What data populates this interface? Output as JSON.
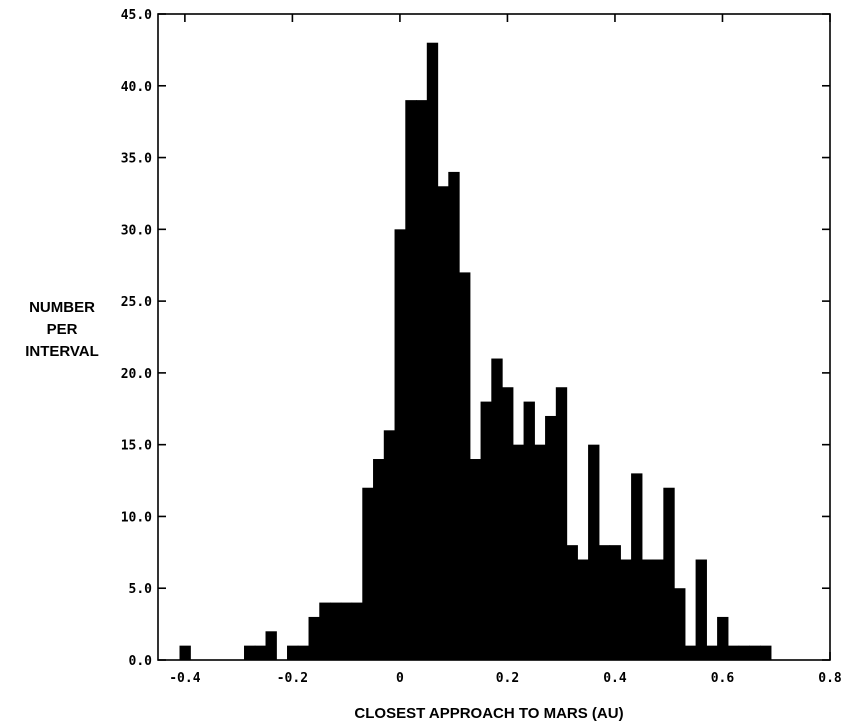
{
  "chart_data": {
    "type": "bar",
    "xlabel": "CLOSEST APPROACH TO MARS (AU)",
    "ylabel_lines": [
      "NUMBER",
      "PER",
      "INTERVAL"
    ],
    "xlim": [
      -0.45,
      0.8
    ],
    "ylim": [
      0,
      45
    ],
    "bin_width": 0.02,
    "xticks": [
      {
        "value": -0.4,
        "label": "-0.4"
      },
      {
        "value": -0.2,
        "label": "-0.2"
      },
      {
        "value": 0.0,
        "label": "0"
      },
      {
        "value": 0.2,
        "label": "0.2"
      },
      {
        "value": 0.4,
        "label": "0.4"
      },
      {
        "value": 0.6,
        "label": "0.6"
      },
      {
        "value": 0.8,
        "label": "0.8"
      }
    ],
    "yticks": [
      {
        "value": 0,
        "label": "0.0"
      },
      {
        "value": 5,
        "label": "5.0"
      },
      {
        "value": 10,
        "label": "10.0"
      },
      {
        "value": 15,
        "label": "15.0"
      },
      {
        "value": 20,
        "label": "20.0"
      },
      {
        "value": 25,
        "label": "25.0"
      },
      {
        "value": 30,
        "label": "30.0"
      },
      {
        "value": 35,
        "label": "35.0"
      },
      {
        "value": 40,
        "label": "40.0"
      },
      {
        "value": 45,
        "label": "45.0"
      }
    ],
    "bins": [
      {
        "start": -0.41,
        "value": 1
      },
      {
        "start": -0.39,
        "value": 0
      },
      {
        "start": -0.37,
        "value": 0
      },
      {
        "start": -0.35,
        "value": 0
      },
      {
        "start": -0.33,
        "value": 0
      },
      {
        "start": -0.31,
        "value": 0
      },
      {
        "start": -0.29,
        "value": 1
      },
      {
        "start": -0.27,
        "value": 1
      },
      {
        "start": -0.25,
        "value": 2
      },
      {
        "start": -0.23,
        "value": 0
      },
      {
        "start": -0.21,
        "value": 1
      },
      {
        "start": -0.19,
        "value": 1
      },
      {
        "start": -0.17,
        "value": 3
      },
      {
        "start": -0.15,
        "value": 4
      },
      {
        "start": -0.13,
        "value": 4
      },
      {
        "start": -0.11,
        "value": 4
      },
      {
        "start": -0.09,
        "value": 4
      },
      {
        "start": -0.07,
        "value": 12
      },
      {
        "start": -0.05,
        "value": 14
      },
      {
        "start": -0.03,
        "value": 16
      },
      {
        "start": -0.01,
        "value": 30
      },
      {
        "start": 0.01,
        "value": 39
      },
      {
        "start": 0.03,
        "value": 39
      },
      {
        "start": 0.05,
        "value": 43
      },
      {
        "start": 0.07,
        "value": 33
      },
      {
        "start": 0.09,
        "value": 34
      },
      {
        "start": 0.11,
        "value": 27
      },
      {
        "start": 0.13,
        "value": 14
      },
      {
        "start": 0.15,
        "value": 18
      },
      {
        "start": 0.17,
        "value": 21
      },
      {
        "start": 0.19,
        "value": 19
      },
      {
        "start": 0.21,
        "value": 15
      },
      {
        "start": 0.23,
        "value": 18
      },
      {
        "start": 0.25,
        "value": 15
      },
      {
        "start": 0.27,
        "value": 17
      },
      {
        "start": 0.29,
        "value": 19
      },
      {
        "start": 0.31,
        "value": 8
      },
      {
        "start": 0.33,
        "value": 7
      },
      {
        "start": 0.35,
        "value": 15
      },
      {
        "start": 0.37,
        "value": 8
      },
      {
        "start": 0.39,
        "value": 8
      },
      {
        "start": 0.41,
        "value": 7
      },
      {
        "start": 0.43,
        "value": 13
      },
      {
        "start": 0.45,
        "value": 7
      },
      {
        "start": 0.47,
        "value": 7
      },
      {
        "start": 0.49,
        "value": 12
      },
      {
        "start": 0.51,
        "value": 5
      },
      {
        "start": 0.53,
        "value": 1
      },
      {
        "start": 0.55,
        "value": 7
      },
      {
        "start": 0.57,
        "value": 1
      },
      {
        "start": 0.59,
        "value": 3
      },
      {
        "start": 0.61,
        "value": 1
      },
      {
        "start": 0.63,
        "value": 1
      },
      {
        "start": 0.65,
        "value": 1
      },
      {
        "start": 0.67,
        "value": 1
      }
    ],
    "bar_color": "#000000",
    "grid": false
  }
}
